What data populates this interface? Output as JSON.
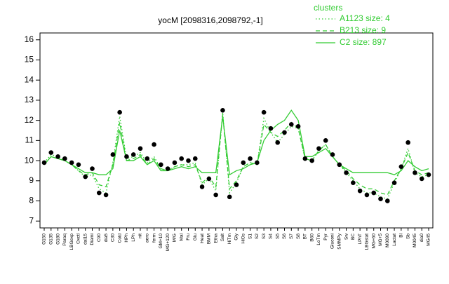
{
  "chart_data": {
    "type": "line",
    "title": "yocM [2098316,2098792,-1]",
    "legend_title": "clusters",
    "legend": "top-right",
    "categories": [
      "G150",
      "G135",
      "G180",
      "Paraq",
      "LBGexp",
      "Oxctl",
      "dal15",
      "Diami",
      "C90",
      "dia5",
      "C30",
      "Cold",
      "HPh",
      "LPh",
      "nit",
      "aero",
      "ferm",
      "GM+10",
      "MG+120",
      "M/G",
      "Mal",
      "Fru",
      "Glu",
      "Heat",
      "BMM",
      "Etha",
      "Salt",
      "HiTm",
      "Gly",
      "HiOs",
      "S1",
      "S2",
      "S3",
      "S4",
      "S5",
      "S6",
      "S7",
      "S8",
      "BT",
      "B60",
      "LoTm",
      "Pyr",
      "Gluconi",
      "SMMPy",
      "Sw",
      "BC",
      "LPhT",
      "LBGstat",
      "MG+60",
      "MG+5",
      "M0090",
      "Lactat",
      "Bl",
      "Sb",
      "M0045",
      "dia0",
      "MG45"
    ],
    "points": {
      "color": "#000000",
      "values": [
        9.9,
        10.4,
        10.2,
        10.1,
        9.9,
        9.8,
        9.2,
        9.6,
        8.4,
        8.3,
        10.3,
        12.4,
        10.2,
        10.3,
        10.6,
        10.1,
        10.8,
        9.8,
        9.6,
        9.9,
        10.1,
        10.0,
        10.1,
        8.7,
        9.1,
        8.3,
        12.5,
        8.2,
        8.8,
        9.9,
        10.1,
        9.9,
        12.4,
        11.6,
        10.9,
        11.4,
        11.8,
        11.7,
        10.1,
        10.0,
        10.6,
        11.0,
        10.3,
        9.8,
        9.4,
        8.9,
        8.5,
        8.3,
        8.4,
        8.1,
        8.0,
        8.9,
        9.7,
        10.9,
        9.4,
        9.1,
        9.3
      ]
    },
    "series": [
      {
        "name": "A1123 size: 4",
        "color": "#33cc33",
        "dash": "dotted",
        "values": [
          9.9,
          10.3,
          10.2,
          10.0,
          9.8,
          9.5,
          9.2,
          9.3,
          8.6,
          8.4,
          9.9,
          12.2,
          10.1,
          10.2,
          10.4,
          9.9,
          10.2,
          9.6,
          9.5,
          9.7,
          9.8,
          9.8,
          9.9,
          8.8,
          9.1,
          8.5,
          12.4,
          8.4,
          8.9,
          9.7,
          9.9,
          9.8,
          12.1,
          11.4,
          10.9,
          11.3,
          11.7,
          11.6,
          10.1,
          10.0,
          10.5,
          10.8,
          10.2,
          9.8,
          9.4,
          9.0,
          8.6,
          8.4,
          8.4,
          8.2,
          8.1,
          8.9,
          9.6,
          10.6,
          9.4,
          9.2,
          9.3
        ]
      },
      {
        "name": "B213 size: 9",
        "color": "#33cc33",
        "dash": "dashed",
        "values": [
          9.8,
          10.2,
          10.1,
          10.0,
          9.8,
          9.5,
          9.3,
          9.4,
          8.8,
          8.7,
          9.8,
          11.9,
          10.0,
          10.1,
          10.3,
          9.8,
          10.1,
          9.6,
          9.5,
          9.7,
          9.8,
          9.7,
          9.8,
          8.9,
          9.2,
          8.7,
          12.3,
          8.6,
          9.0,
          9.7,
          9.9,
          9.8,
          11.8,
          11.4,
          11.2,
          11.5,
          11.9,
          11.6,
          10.1,
          10.0,
          10.5,
          10.8,
          10.2,
          9.8,
          9.5,
          9.1,
          8.8,
          8.6,
          8.6,
          8.4,
          8.3,
          9.0,
          9.6,
          10.4,
          9.5,
          9.3,
          9.4
        ]
      },
      {
        "name": "C2 size: 897",
        "color": "#33cc33",
        "dash": "solid",
        "values": [
          9.8,
          10.2,
          10.1,
          10.0,
          9.8,
          9.6,
          9.4,
          9.4,
          9.3,
          9.3,
          9.6,
          11.5,
          10.0,
          10.0,
          10.2,
          9.8,
          10.0,
          9.5,
          9.5,
          9.6,
          9.7,
          9.6,
          9.7,
          9.4,
          9.4,
          9.4,
          12.2,
          9.3,
          9.5,
          9.6,
          9.8,
          9.9,
          11.0,
          11.5,
          11.8,
          12.0,
          12.5,
          12.0,
          10.2,
          10.2,
          10.4,
          10.6,
          10.2,
          9.8,
          9.6,
          9.4,
          9.4,
          9.4,
          9.4,
          9.4,
          9.4,
          9.3,
          9.5,
          10.0,
          9.7,
          9.5,
          9.6
        ]
      }
    ],
    "ylim": [
      6.66,
      16.34
    ],
    "yticks": [
      7,
      8,
      9,
      10,
      11,
      12,
      13,
      14,
      15,
      16
    ]
  }
}
